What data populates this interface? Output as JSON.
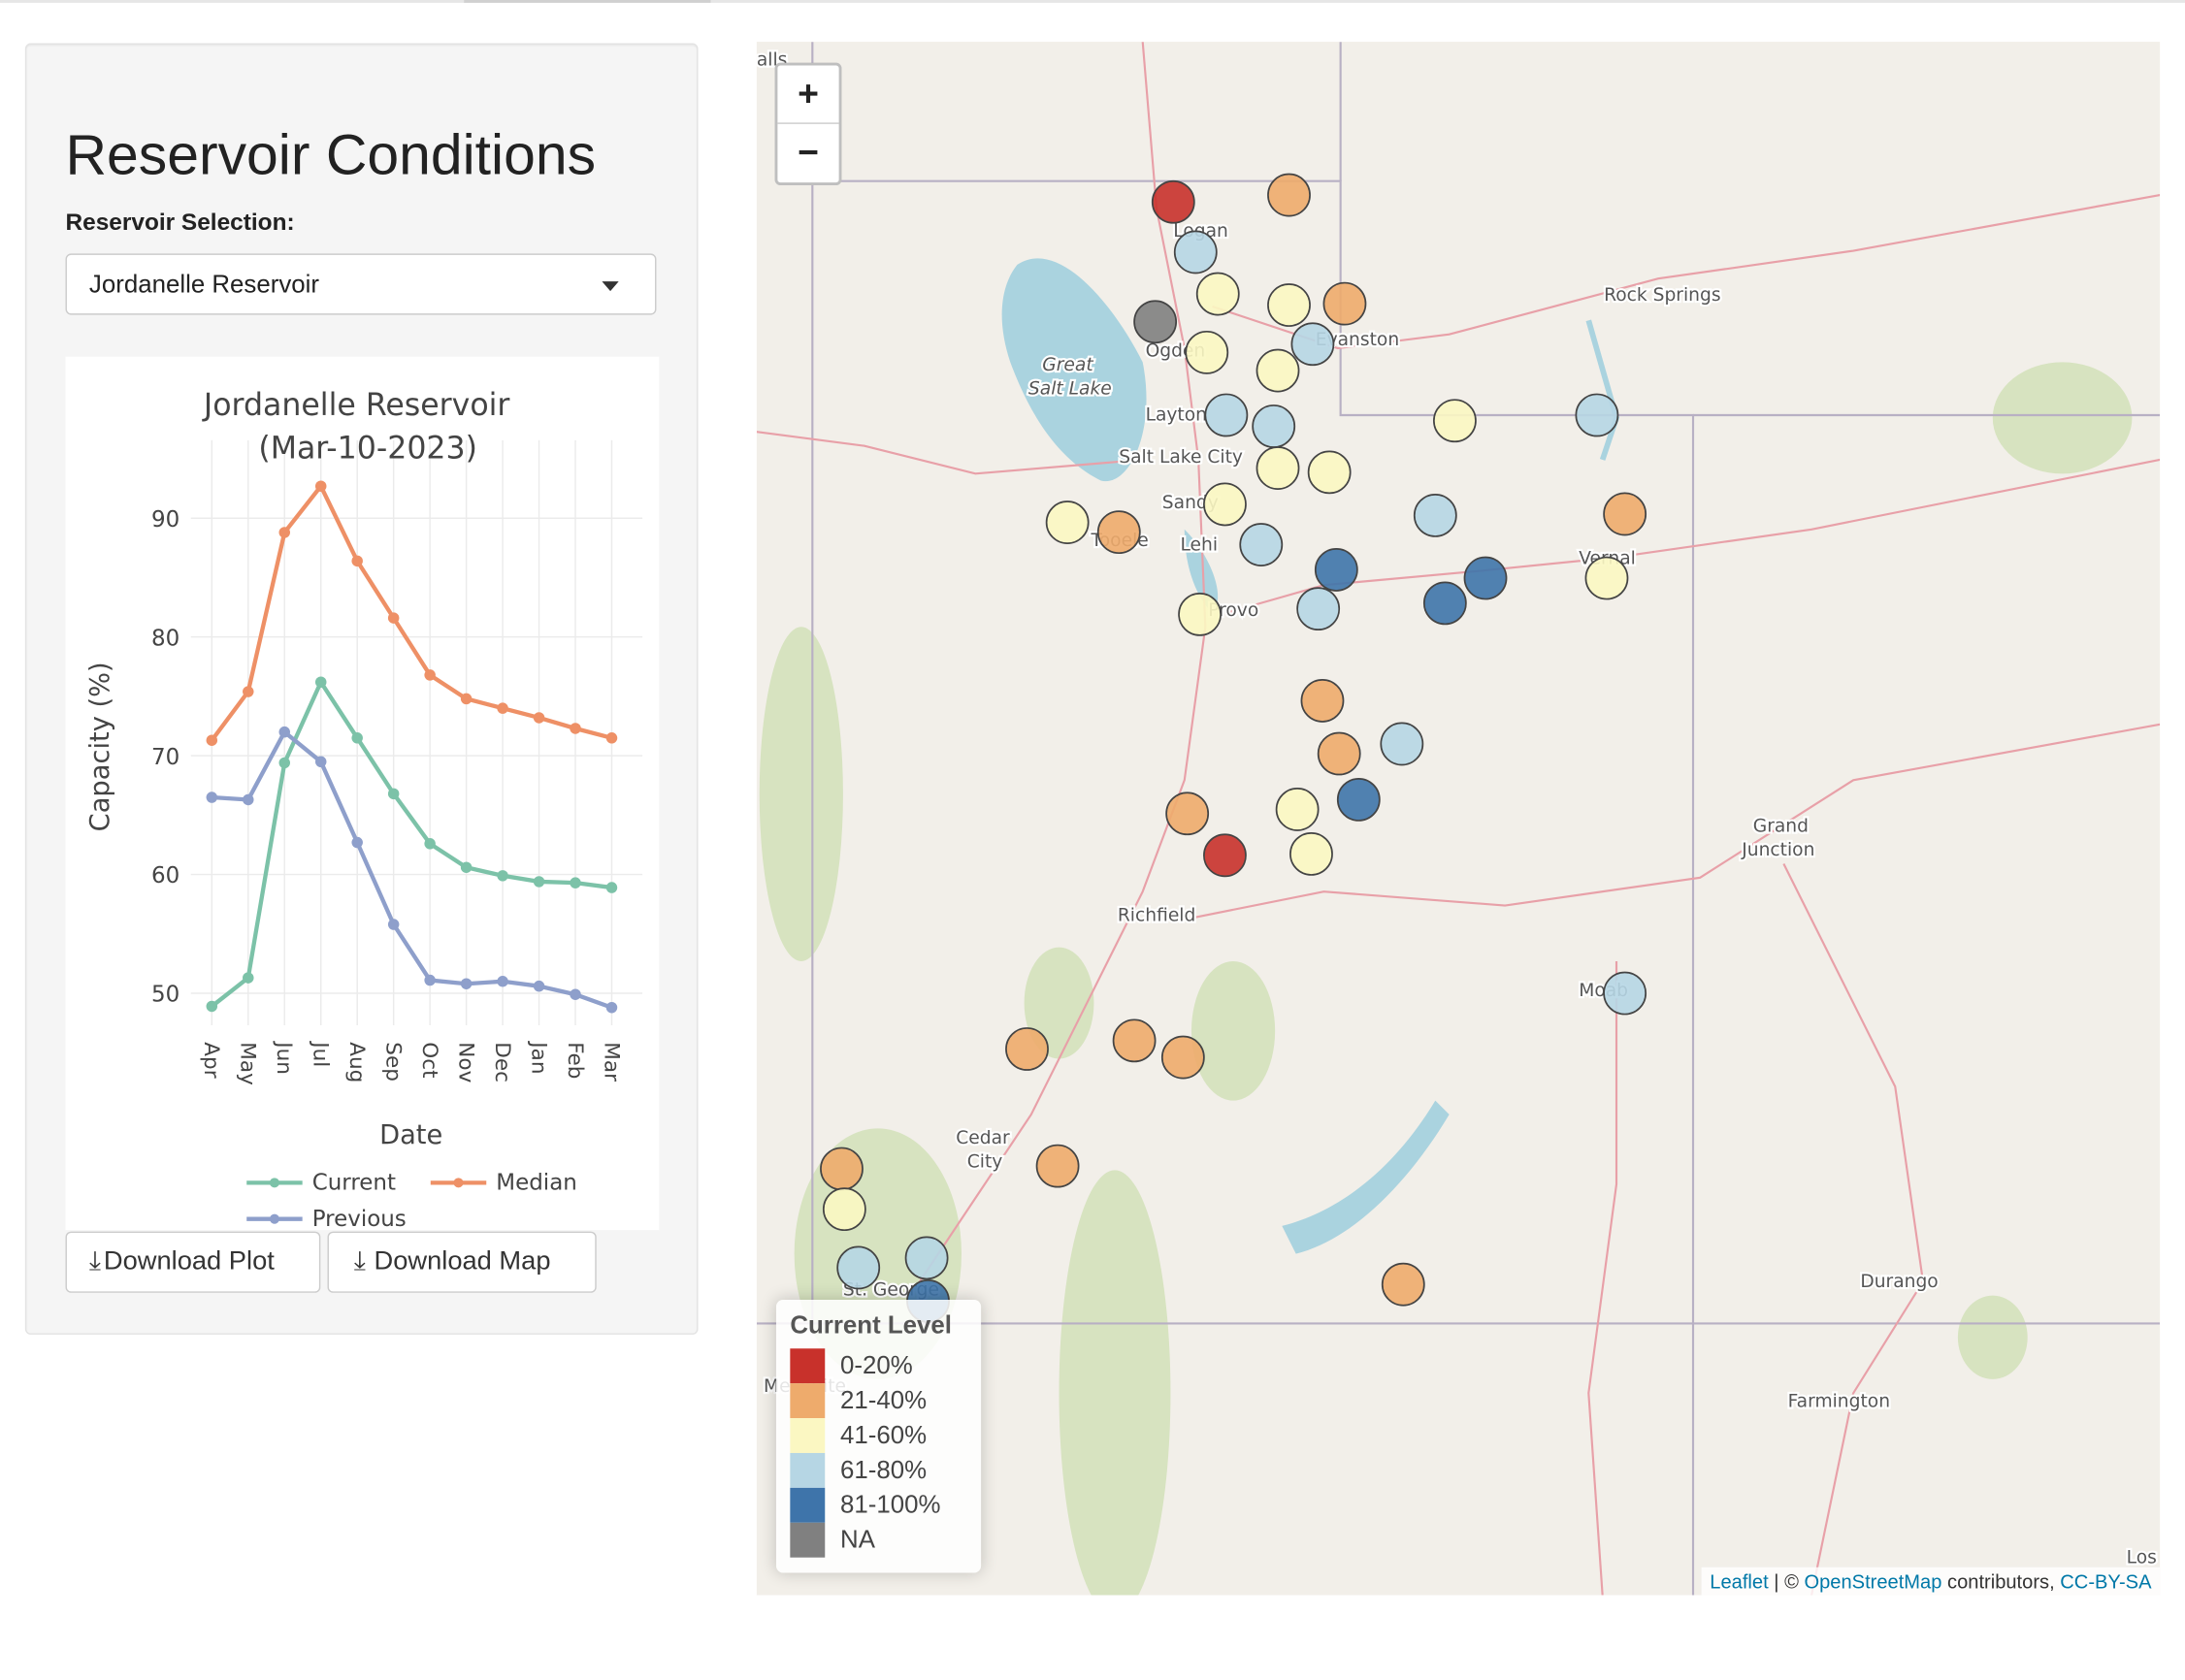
{
  "sidebar": {
    "title": "Reservoir Conditions",
    "selection_label": "Reservoir Selection:",
    "selected_reservoir": "Jordanelle Reservoir",
    "download_plot": "Download Plot",
    "download_map": "Download Map"
  },
  "chart_data": {
    "type": "line",
    "title": "Jordanelle Reservoir",
    "subtitle": "(Mar-10-2023)",
    "xlabel": "Date",
    "ylabel": "Capacity (%)",
    "categories": [
      "Apr",
      "May",
      "Jun",
      "Jul",
      "Aug",
      "Sep",
      "Oct",
      "Nov",
      "Dec",
      "Jan",
      "Feb",
      "Mar"
    ],
    "yticks": [
      50,
      60,
      70,
      80,
      90
    ],
    "ylim": [
      46.5,
      95
    ],
    "grid": true,
    "legend_placement": "bottom",
    "series": [
      {
        "name": "Current",
        "color": "#7cc2a8",
        "values": [
          48.9,
          51.3,
          69.4,
          76.2,
          71.5,
          66.8,
          62.6,
          60.6,
          59.9,
          59.4,
          59.3,
          58.9
        ]
      },
      {
        "name": "Median",
        "color": "#ee9066",
        "values": [
          71.3,
          75.4,
          88.8,
          92.7,
          86.4,
          81.6,
          76.8,
          74.8,
          74.0,
          73.2,
          72.3,
          71.5
        ]
      },
      {
        "name": "Previous",
        "color": "#8e9fcb",
        "values": [
          66.5,
          66.3,
          72.0,
          69.5,
          62.7,
          55.8,
          51.1,
          50.8,
          51.0,
          50.6,
          49.9,
          48.8
        ]
      }
    ]
  },
  "map": {
    "zoom_in": "+",
    "zoom_out": "−",
    "legend_title": "Current Level",
    "legend": [
      {
        "label": "0-20%",
        "color": "#c8312b"
      },
      {
        "label": "21-40%",
        "color": "#eeab6c"
      },
      {
        "label": "41-60%",
        "color": "#fbf7c2"
      },
      {
        "label": "61-80%",
        "color": "#b6d6e4"
      },
      {
        "label": "81-100%",
        "color": "#3e74aa"
      },
      {
        "label": "NA",
        "color": "#808080"
      }
    ],
    "markers": [
      0,
      0,
      1,
      1,
      1,
      1,
      1,
      1,
      1,
      1,
      1,
      1,
      1,
      1,
      1,
      2,
      2,
      2,
      2,
      2,
      2,
      2,
      2,
      2,
      2,
      2,
      2,
      2,
      2,
      3,
      3,
      3,
      3,
      3,
      3,
      3,
      3,
      3,
      3,
      3,
      3,
      4,
      4,
      4,
      4,
      4,
      5
    ],
    "cities": [
      "alls",
      "Logan",
      "Ogden",
      "Great",
      "Salt Lake",
      "Layton",
      "Salt Lake City",
      "Sandy",
      "Tooele",
      "Lehi",
      "Provo",
      "Evanston",
      "Rock Springs",
      "Vernal",
      "Grand",
      "Junction",
      "Richfield",
      "Moab",
      "Cedar",
      "City",
      "St. George",
      "Durango",
      "Farmington",
      "Mesquite",
      "Los"
    ],
    "attribution": {
      "leaflet": "Leaflet",
      "sep": " | © ",
      "osm": "OpenStreetMap",
      "contrib": " contributors, ",
      "license": "CC-BY-SA"
    }
  }
}
